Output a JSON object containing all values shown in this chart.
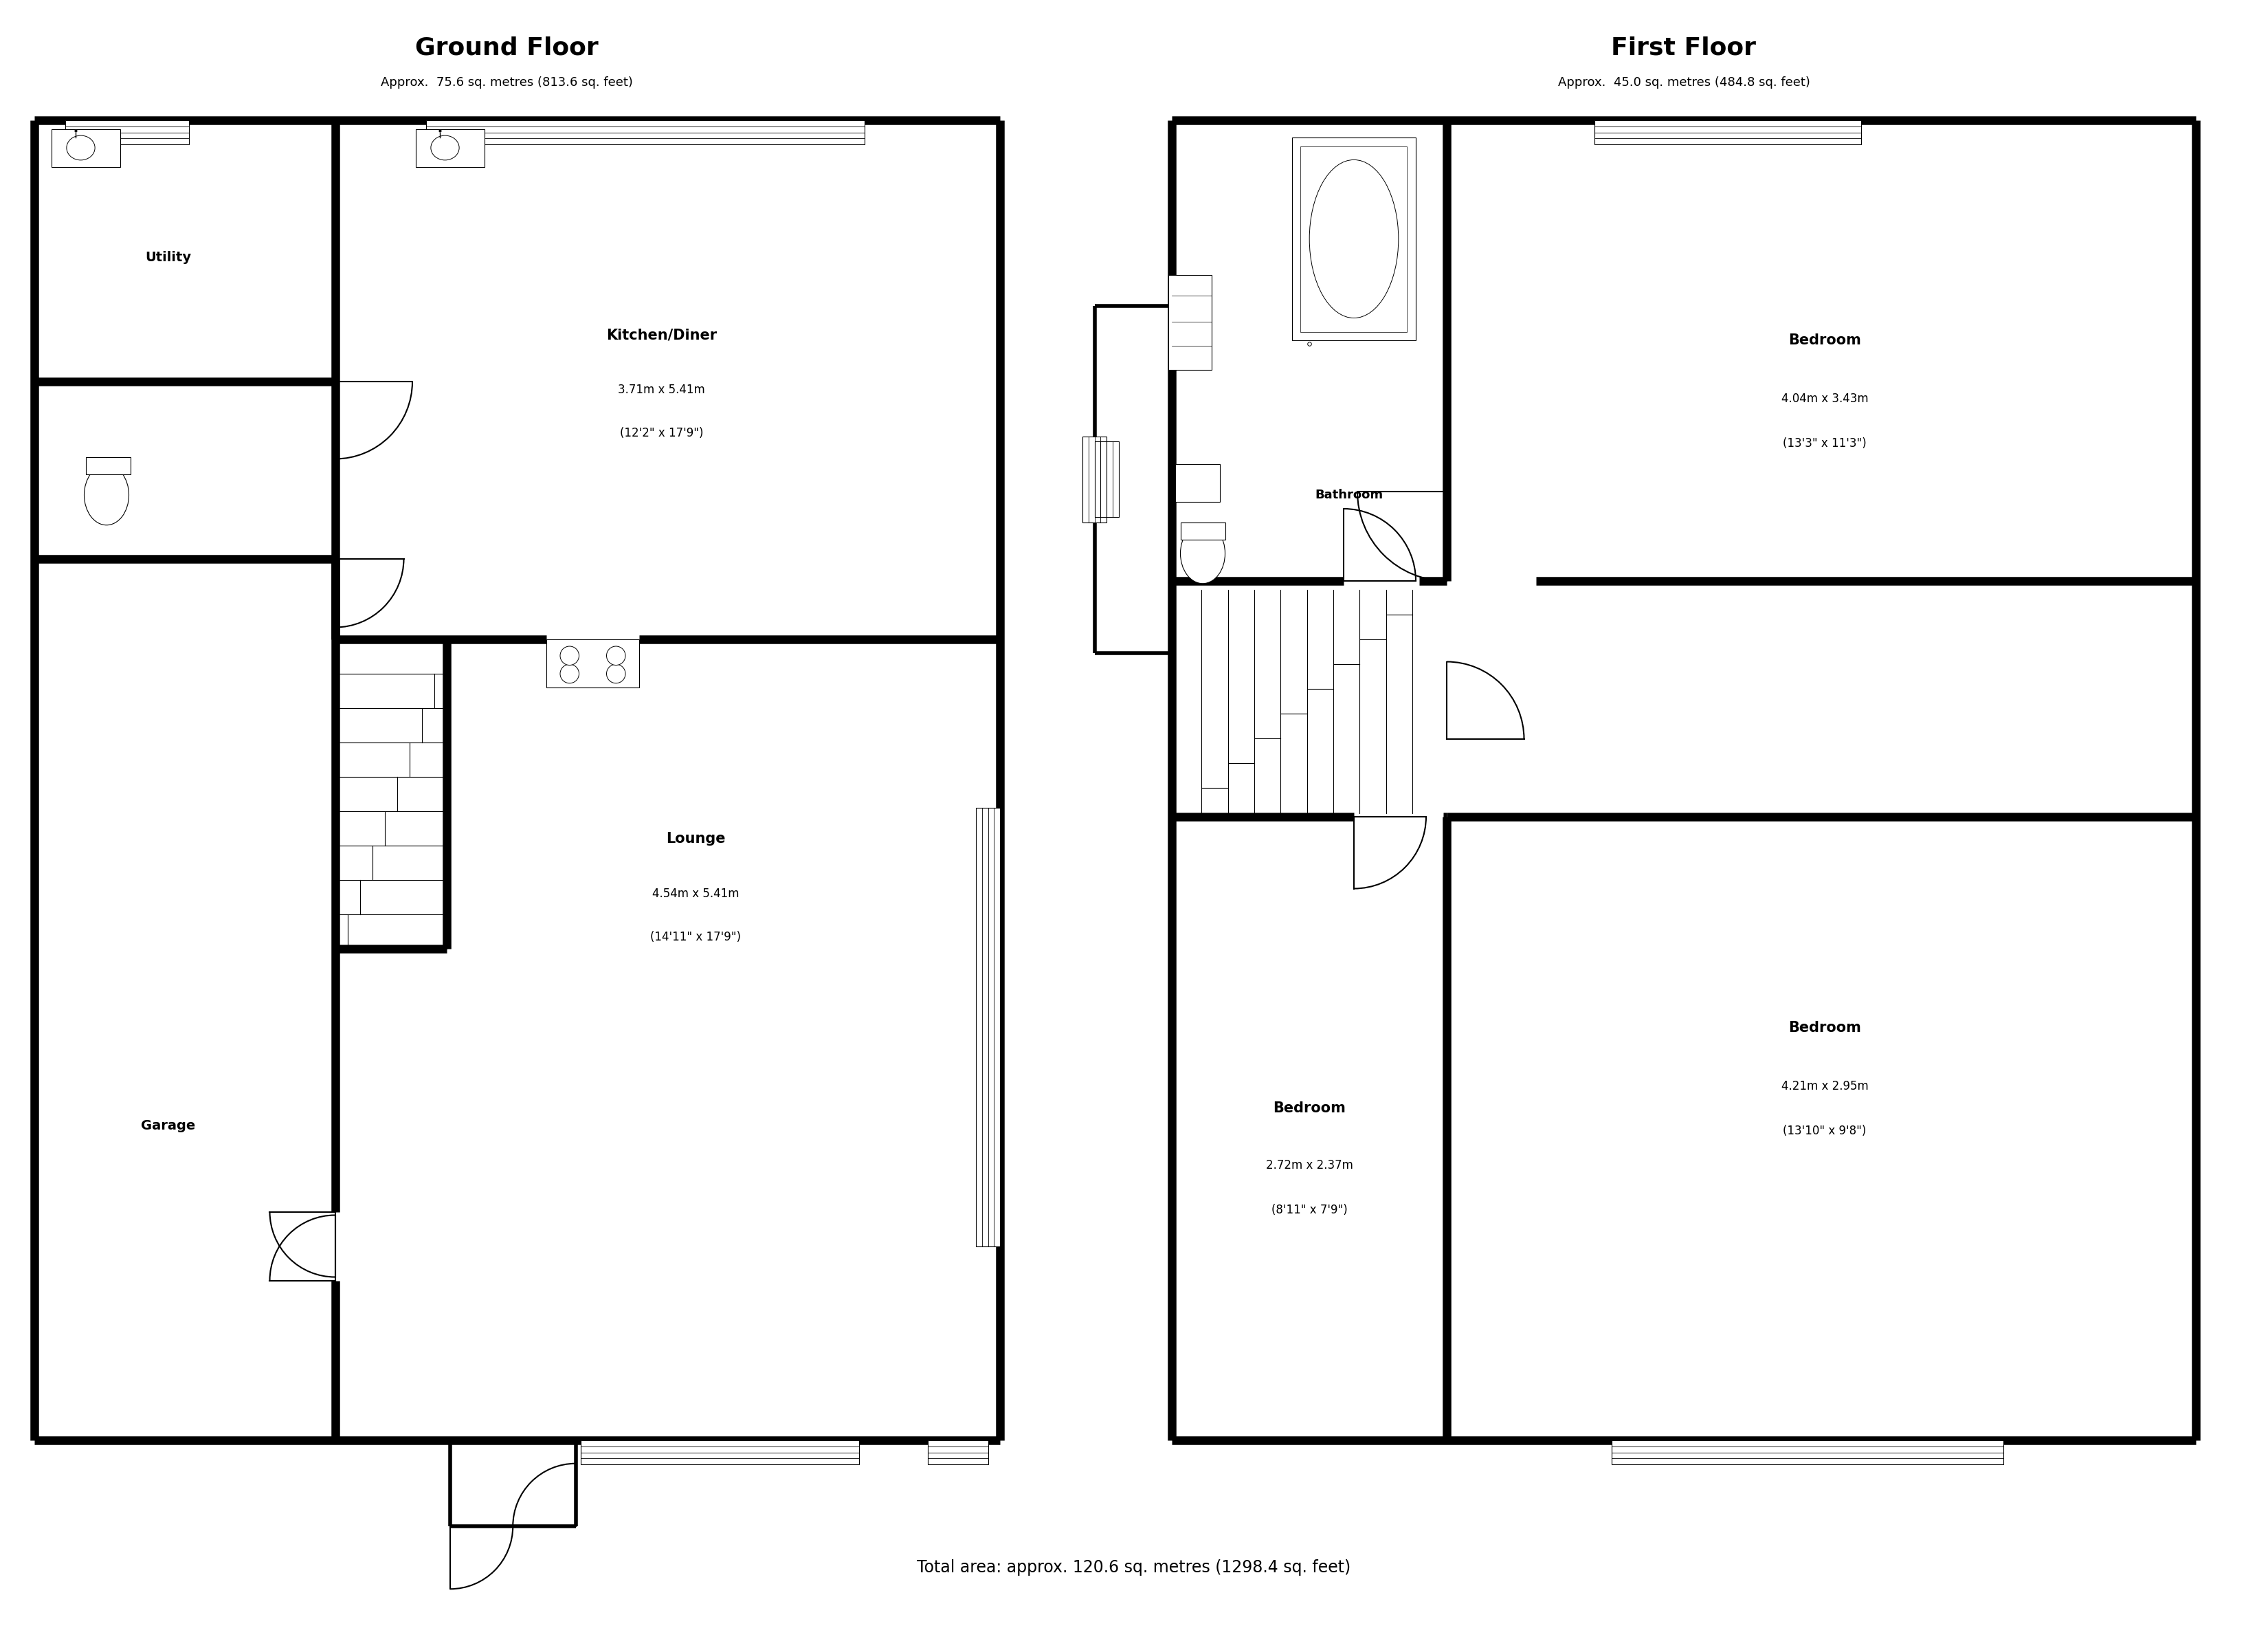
{
  "bg_color": "#ffffff",
  "wall_color": "#000000",
  "title_ground": "Ground Floor",
  "subtitle_ground": "Approx.  75.6 sq. metres (813.6 sq. feet)",
  "title_first": "First Floor",
  "subtitle_first": "Approx.  45.0 sq. metres (484.8 sq. feet)",
  "footer": "Total area: approx. 120.6 sq. metres (1298.4 sq. feet)",
  "lw_wall": 9,
  "lw_thin": 1.5,
  "lw_med": 4
}
